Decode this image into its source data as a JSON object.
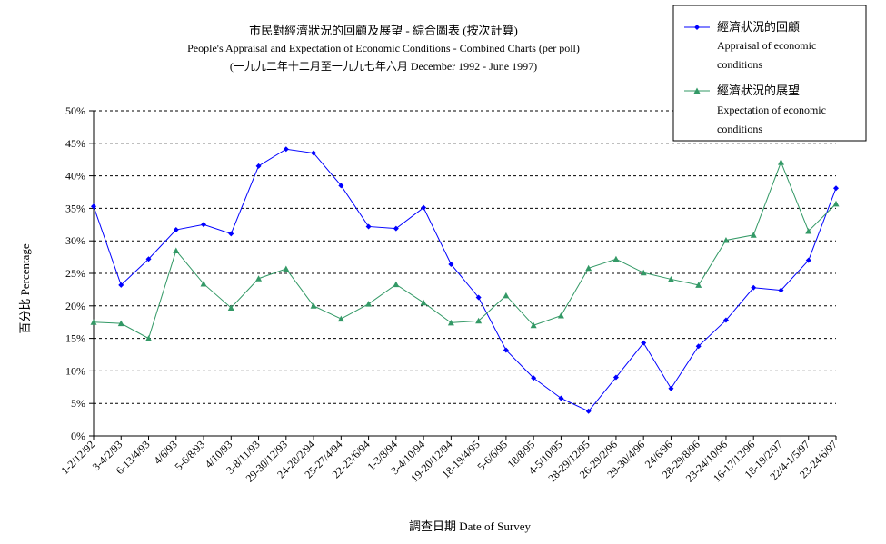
{
  "chart_data": {
    "type": "line",
    "title": "市民對經濟狀況的回顧及展望 - 綜合圖表 (按次計算)",
    "subtitle": "People's Appraisal and Expectation of Economic Conditions - Combined Charts  (per poll)",
    "subtitle2": "(一九九二年十二月至一九九七年六月 December 1992 - June 1997)",
    "xlabel": "調查日期 Date of Survey",
    "ylabel": "百分比 Percentage",
    "ylim": [
      0,
      50
    ],
    "yticks": [
      "0%",
      "5%",
      "10%",
      "15%",
      "20%",
      "25%",
      "30%",
      "35%",
      "40%",
      "45%",
      "50%"
    ],
    "grid": true,
    "legend_position": "top-right",
    "categories": [
      "1-2/12/92",
      "3-4/2/93",
      "6-13/4/93",
      "4/6/93",
      "5-6/8/93",
      "4/10/93",
      "3-8/11/93",
      "29-30/12/93",
      "24-28/2/94",
      "25-27/4/94",
      "22-23/6/94",
      "1-3/8/94",
      "3-4/10/94",
      "19-20/12/94",
      "18-19/4/95",
      "5-6/6/95",
      "18/8/95",
      "4-5/10/95",
      "28-29/12/95",
      "26-29/2/96",
      "29-30/4/96",
      "24/6/96",
      "28-29/8/96",
      "23-24/10/96",
      "16-17/12/96",
      "18-19/2/97",
      "22/4-1/5/97",
      "23-24/6/97"
    ],
    "series": [
      {
        "name": "經濟狀況的回顧",
        "name2": "Appraisal of economic",
        "name3": "conditions",
        "color": "#0000ff",
        "marker": "diamond",
        "values": [
          35.3,
          23.2,
          27.2,
          31.7,
          32.5,
          31.1,
          41.5,
          44.1,
          43.5,
          38.5,
          32.2,
          31.9,
          35.1,
          26.4,
          21.3,
          13.2,
          8.9,
          5.8,
          3.8,
          9.0,
          14.3,
          7.3,
          13.8,
          17.8,
          22.8,
          22.4,
          27.0,
          38.1
        ]
      },
      {
        "name": "經濟狀況的展望",
        "name2": "Expectation of economic",
        "name3": "conditions",
        "color": "#339966",
        "marker": "triangle",
        "values": [
          17.5,
          17.3,
          15.0,
          28.5,
          23.4,
          19.7,
          24.2,
          25.7,
          20.0,
          18.0,
          20.3,
          23.3,
          20.5,
          17.4,
          17.7,
          21.6,
          17.0,
          18.5,
          25.8,
          27.2,
          25.1,
          24.1,
          23.2,
          30.1,
          30.9,
          42.1,
          31.5,
          35.7
        ]
      }
    ]
  }
}
